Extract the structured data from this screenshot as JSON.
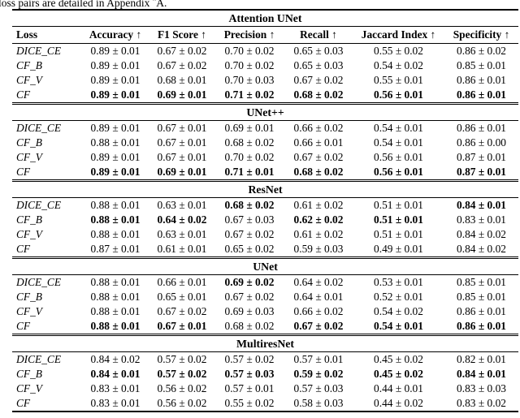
{
  "caption": "loss pairs are detailed in Appendix ¨A.",
  "colors": {
    "text": "#000000",
    "background": "#ffffff",
    "rule": "#000000"
  },
  "table": {
    "columns": [
      "Loss",
      "Accuracy ↑",
      "F1 Score ↑",
      "Precision ↑",
      "Recall ↑",
      "Jaccard Index ↑",
      "Specificity ↑"
    ],
    "sections": [
      {
        "title": "Attention UNet",
        "rows": [
          {
            "loss": "DICE_CE",
            "values": [
              "0.89 ± 0.01",
              "0.67 ± 0.02",
              "0.70 ± 0.02",
              "0.65 ± 0.03",
              "0.55 ± 0.02",
              "0.86 ± 0.02"
            ],
            "bold": [
              false,
              false,
              false,
              false,
              false,
              false
            ]
          },
          {
            "loss": "CF_B",
            "values": [
              "0.89 ± 0.01",
              "0.67 ± 0.02",
              "0.70 ± 0.02",
              "0.65 ± 0.03",
              "0.54 ± 0.02",
              "0.85 ± 0.01"
            ],
            "bold": [
              false,
              false,
              false,
              false,
              false,
              false
            ]
          },
          {
            "loss": "CF_V",
            "values": [
              "0.89 ± 0.01",
              "0.68 ± 0.01",
              "0.70 ± 0.03",
              "0.67 ± 0.02",
              "0.55 ± 0.01",
              "0.86 ± 0.01"
            ],
            "bold": [
              false,
              false,
              false,
              false,
              false,
              false
            ]
          },
          {
            "loss": "CF",
            "values": [
              "0.89 ± 0.01",
              "0.69 ± 0.01",
              "0.71 ± 0.02",
              "0.68 ± 0.02",
              "0.56 ± 0.01",
              "0.86 ± 0.01"
            ],
            "bold": [
              true,
              true,
              true,
              true,
              true,
              true
            ]
          }
        ]
      },
      {
        "title": "UNet++",
        "rows": [
          {
            "loss": "DICE_CE",
            "values": [
              "0.89 ± 0.01",
              "0.67 ± 0.01",
              "0.69 ± 0.01",
              "0.66 ± 0.02",
              "0.54 ± 0.01",
              "0.86 ± 0.01"
            ],
            "bold": [
              false,
              false,
              false,
              false,
              false,
              false
            ]
          },
          {
            "loss": "CF_B",
            "values": [
              "0.88 ± 0.01",
              "0.67 ± 0.01",
              "0.68 ± 0.02",
              "0.66 ± 0.01",
              "0.54 ± 0.01",
              "0.86 ± 0.00"
            ],
            "bold": [
              false,
              false,
              false,
              false,
              false,
              false
            ]
          },
          {
            "loss": "CF_V",
            "values": [
              "0.89 ± 0.01",
              "0.67 ± 0.01",
              "0.70 ± 0.02",
              "0.67 ± 0.02",
              "0.56 ± 0.01",
              "0.87 ± 0.01"
            ],
            "bold": [
              false,
              false,
              false,
              false,
              false,
              false
            ]
          },
          {
            "loss": "CF",
            "values": [
              "0.89 ± 0.01",
              "0.69 ± 0.01",
              "0.71 ± 0.01",
              "0.68 ± 0.02",
              "0.56 ± 0.01",
              "0.87 ± 0.01"
            ],
            "bold": [
              true,
              true,
              true,
              true,
              true,
              true
            ]
          }
        ]
      },
      {
        "title": "ResNet",
        "rows": [
          {
            "loss": "DICE_CE",
            "values": [
              "0.88 ± 0.01",
              "0.63 ± 0.01",
              "0.68 ± 0.02",
              "0.61 ± 0.02",
              "0.51 ± 0.01",
              "0.84 ± 0.01"
            ],
            "bold": [
              false,
              false,
              true,
              false,
              false,
              true
            ]
          },
          {
            "loss": "CF_B",
            "values": [
              "0.88 ± 0.01",
              "0.64 ± 0.02",
              "0.67 ± 0.03",
              "0.62 ± 0.02",
              "0.51 ± 0.01",
              "0.83 ± 0.01"
            ],
            "bold": [
              true,
              true,
              false,
              true,
              true,
              false
            ]
          },
          {
            "loss": "CF_V",
            "values": [
              "0.88 ± 0.01",
              "0.63 ± 0.01",
              "0.67 ± 0.02",
              "0.61 ± 0.02",
              "0.51 ± 0.01",
              "0.84 ± 0.02"
            ],
            "bold": [
              false,
              false,
              false,
              false,
              false,
              false
            ]
          },
          {
            "loss": "CF",
            "values": [
              "0.87 ± 0.01",
              "0.61 ± 0.01",
              "0.65 ± 0.02",
              "0.59 ± 0.03",
              "0.49 ± 0.01",
              "0.84 ± 0.02"
            ],
            "bold": [
              false,
              false,
              false,
              false,
              false,
              false
            ]
          }
        ]
      },
      {
        "title": "UNet",
        "rows": [
          {
            "loss": "DICE_CE",
            "values": [
              "0.88 ± 0.01",
              "0.66 ± 0.01",
              "0.69 ± 0.02",
              "0.64 ± 0.02",
              "0.53 ± 0.01",
              "0.85 ± 0.01"
            ],
            "bold": [
              false,
              false,
              true,
              false,
              false,
              false
            ]
          },
          {
            "loss": "CF_B",
            "values": [
              "0.88 ± 0.01",
              "0.65 ± 0.01",
              "0.67 ± 0.02",
              "0.64 ± 0.01",
              "0.52 ± 0.01",
              "0.85 ± 0.01"
            ],
            "bold": [
              false,
              false,
              false,
              false,
              false,
              false
            ]
          },
          {
            "loss": "CF_V",
            "values": [
              "0.88 ± 0.01",
              "0.67 ± 0.02",
              "0.69 ± 0.03",
              "0.66 ± 0.02",
              "0.54 ± 0.02",
              "0.86 ± 0.01"
            ],
            "bold": [
              false,
              false,
              false,
              false,
              false,
              false
            ]
          },
          {
            "loss": "CF",
            "values": [
              "0.88 ± 0.01",
              "0.67 ± 0.01",
              "0.68 ± 0.02",
              "0.67 ± 0.02",
              "0.54 ± 0.01",
              "0.86 ± 0.01"
            ],
            "bold": [
              true,
              true,
              false,
              true,
              true,
              true
            ]
          }
        ]
      },
      {
        "title": "MultiresNet",
        "rows": [
          {
            "loss": "DICE_CE",
            "values": [
              "0.84 ± 0.02",
              "0.57 ± 0.02",
              "0.57 ± 0.02",
              "0.57 ± 0.01",
              "0.45 ± 0.02",
              "0.82 ± 0.01"
            ],
            "bold": [
              false,
              false,
              false,
              false,
              false,
              false
            ]
          },
          {
            "loss": "CF_B",
            "values": [
              "0.84 ± 0.01",
              "0.57 ± 0.02",
              "0.57 ± 0.03",
              "0.59 ± 0.02",
              "0.45 ± 0.02",
              "0.84 ± 0.01"
            ],
            "bold": [
              true,
              true,
              true,
              true,
              true,
              true
            ]
          },
          {
            "loss": "CF_V",
            "values": [
              "0.83 ± 0.01",
              "0.56 ± 0.02",
              "0.57 ± 0.01",
              "0.57 ± 0.03",
              "0.44 ± 0.01",
              "0.83 ± 0.03"
            ],
            "bold": [
              false,
              false,
              false,
              false,
              false,
              false
            ]
          },
          {
            "loss": "CF",
            "values": [
              "0.83 ± 0.01",
              "0.56 ± 0.02",
              "0.55 ± 0.02",
              "0.58 ± 0.03",
              "0.44 ± 0.02",
              "0.83 ± 0.02"
            ],
            "bold": [
              false,
              false,
              false,
              false,
              false,
              false
            ]
          }
        ]
      }
    ]
  }
}
